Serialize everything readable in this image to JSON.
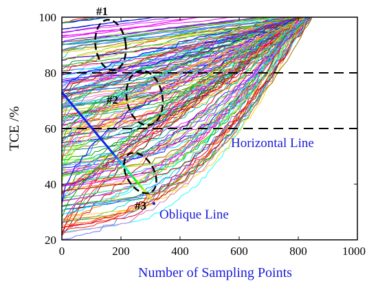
{
  "chart_data": {
    "type": "line",
    "xlabel": "Number of Sampling Points",
    "ylabel": "TCE /%",
    "xlim": [
      0,
      1000
    ],
    "ylim": [
      20,
      100
    ],
    "x_ticks": [
      "0",
      "200",
      "400",
      "600",
      "800",
      "1000"
    ],
    "y_ticks": [
      "20",
      "40",
      "60",
      "80",
      "100"
    ],
    "grid": false,
    "description_series_count": "hundreds of multicolored TCE curves rising to 100% by about 840 sampling points",
    "series_endpoint_x": 845,
    "series_endpoint_y": 100,
    "reference_lines": [
      {
        "y": 80,
        "style": "dashed"
      },
      {
        "y": 60,
        "style": "dashed"
      }
    ],
    "oblique_line": {
      "x": [
        0,
        300
      ],
      "y": [
        73,
        35
      ]
    },
    "annotations": {
      "horizontal_line": "Horizontal Line",
      "oblique_line": "Oblique Line",
      "regions": [
        {
          "label": "#1",
          "cx": 165,
          "cy": 90
        },
        {
          "label": "#2",
          "cx": 280,
          "cy": 71
        },
        {
          "label": "#3",
          "cx": 265,
          "cy": 44
        }
      ]
    }
  }
}
